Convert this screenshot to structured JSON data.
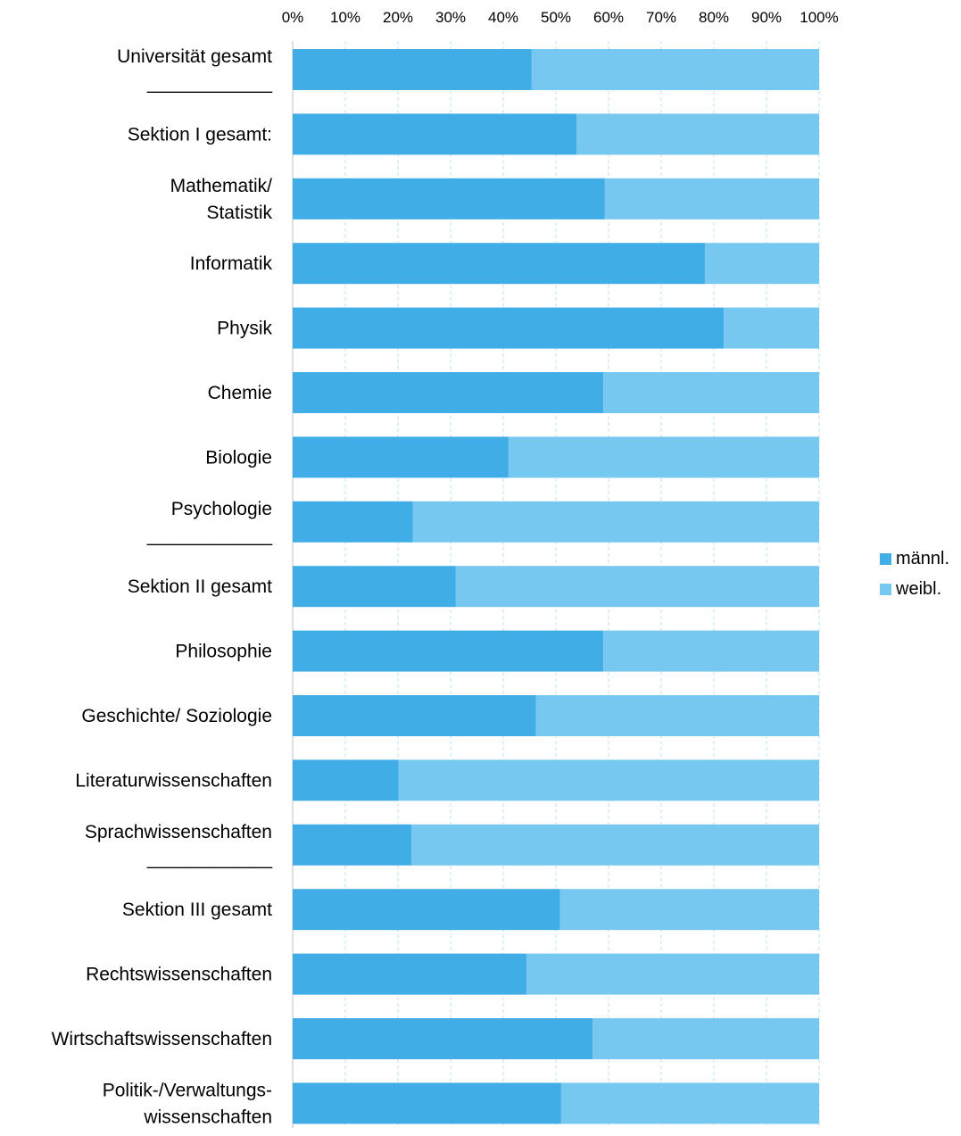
{
  "chart_data": {
    "type": "bar",
    "orientation": "horizontal",
    "stacked": "percent",
    "xlim": [
      0,
      100
    ],
    "x_ticks": [
      "0%",
      "10%",
      "20%",
      "30%",
      "40%",
      "50%",
      "60%",
      "70%",
      "80%",
      "90%",
      "100%"
    ],
    "x_axis_position": "top",
    "grid": "vertical dashed",
    "legend_position": "right",
    "categories": [
      [
        "Universität gesamt",
        "____________"
      ],
      [
        "Sektion I gesamt:"
      ],
      [
        "Mathematik/",
        "Statistik"
      ],
      [
        "Informatik"
      ],
      [
        "Physik"
      ],
      [
        "Chemie"
      ],
      [
        "Biologie"
      ],
      [
        "Psychologie",
        "____________"
      ],
      [
        "Sektion II gesamt"
      ],
      [
        "Philosophie"
      ],
      [
        "Geschichte/ Soziologie"
      ],
      [
        "Literaturwissenschaften"
      ],
      [
        "Sprachwissenschaften",
        "____________"
      ],
      [
        "Sektion III gesamt"
      ],
      [
        "Rechtswissenschaften"
      ],
      [
        "Wirtschaftswissenschaften"
      ],
      [
        "Politik-/Verwaltungs-",
        "wissenschaften"
      ]
    ],
    "series": [
      {
        "name": "männl.",
        "color": "#41ADE6",
        "values": [
          45.4,
          53.9,
          59.3,
          78.3,
          81.9,
          59.0,
          41.0,
          22.8,
          31.0,
          59.0,
          46.2,
          20.1,
          22.6,
          50.8,
          44.4,
          57.0,
          51.0
        ]
      },
      {
        "name": "weibl.",
        "color": "#77C8F1",
        "values": [
          54.6,
          46.1,
          40.7,
          21.7,
          18.1,
          41.0,
          59.0,
          77.2,
          69.0,
          41.0,
          53.8,
          79.9,
          77.4,
          49.2,
          55.6,
          43.0,
          49.0
        ]
      }
    ]
  }
}
